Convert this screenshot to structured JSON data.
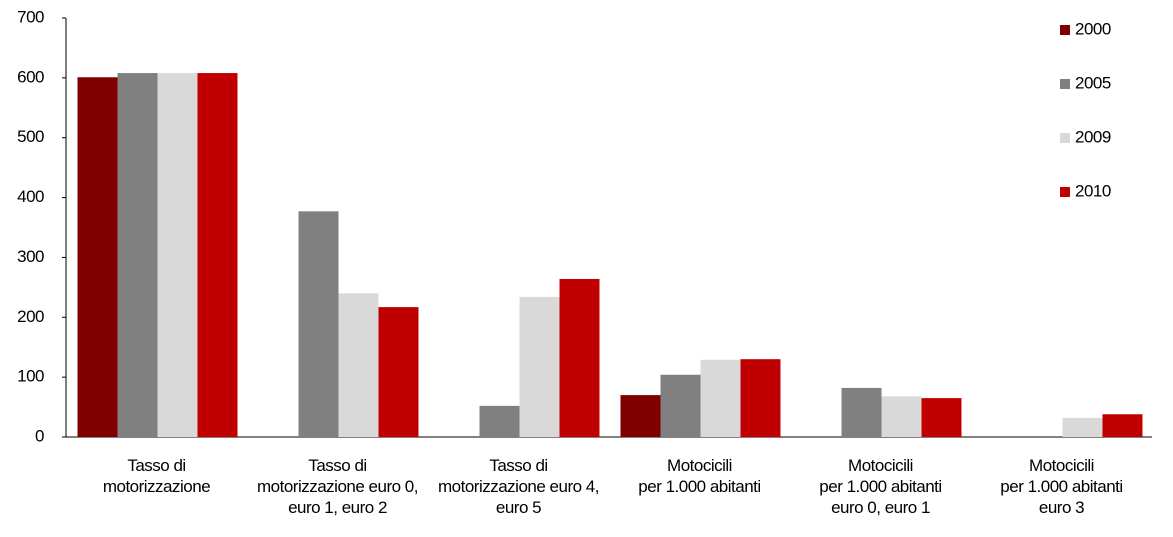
{
  "chart_data": {
    "type": "bar",
    "categories": [
      "Tasso di\nmotorizzazione",
      "Tasso di\nmotorizzazione euro 0,\neuro 1, euro 2",
      "Tasso di\nmotorizzazione euro 4,\neuro 5",
      "Motocicili\nper 1.000 abitanti",
      "Motocicili\nper 1.000 abitanti\neuro 0, euro 1",
      "Motocicili\nper 1.000 abitanti\neuro 3"
    ],
    "series": [
      {
        "name": "2000",
        "color": "#800000",
        "values": [
          601,
          null,
          null,
          70,
          null,
          null
        ]
      },
      {
        "name": "2005",
        "color": "#808080",
        "values": [
          608,
          377,
          52,
          104,
          82,
          null
        ]
      },
      {
        "name": "2009",
        "color": "#d9d9d9",
        "values": [
          608,
          240,
          234,
          129,
          68,
          32
        ]
      },
      {
        "name": "2010",
        "color": "#c00000",
        "values": [
          608,
          217,
          264,
          130,
          65,
          38
        ]
      }
    ],
    "ylim": [
      0,
      700
    ],
    "yticks": [
      0,
      100,
      200,
      300,
      400,
      500,
      600,
      700
    ],
    "grid": false,
    "legend": "right"
  }
}
